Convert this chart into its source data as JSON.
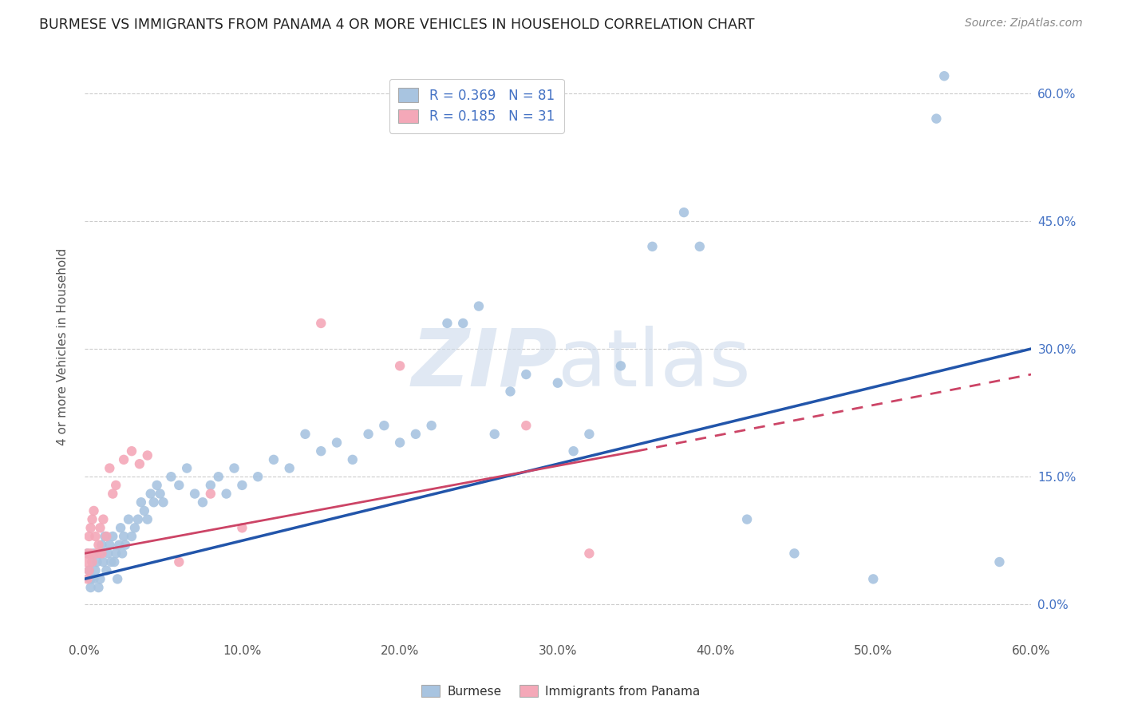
{
  "title": "BURMESE VS IMMIGRANTS FROM PANAMA 4 OR MORE VEHICLES IN HOUSEHOLD CORRELATION CHART",
  "source": "Source: ZipAtlas.com",
  "ylabel_label": "4 or more Vehicles in Household",
  "xlim": [
    0,
    0.6
  ],
  "ylim": [
    -0.04,
    0.645
  ],
  "ytick_vals": [
    0.0,
    0.15,
    0.3,
    0.45,
    0.6
  ],
  "xtick_vals": [
    0.0,
    0.1,
    0.2,
    0.3,
    0.4,
    0.5,
    0.6
  ],
  "burmese_R": 0.369,
  "burmese_N": 81,
  "panama_R": 0.185,
  "panama_N": 31,
  "burmese_color": "#a8c4e0",
  "burmese_line_color": "#2255aa",
  "panama_color": "#f4a8b8",
  "panama_line_color": "#cc4466",
  "watermark_color": "#ccdaeb",
  "legend_burmese": "Burmese",
  "legend_panama": "Immigrants from Panama",
  "background_color": "#ffffff",
  "grid_color": "#cccccc",
  "title_color": "#222222",
  "axis_tick_color": "#4472c4",
  "right_axis_color": "#4472c4",
  "burmese_x": [
    0.002,
    0.003,
    0.004,
    0.004,
    0.005,
    0.006,
    0.006,
    0.007,
    0.008,
    0.009,
    0.01,
    0.01,
    0.011,
    0.012,
    0.013,
    0.014,
    0.015,
    0.016,
    0.017,
    0.018,
    0.019,
    0.02,
    0.021,
    0.022,
    0.023,
    0.024,
    0.025,
    0.026,
    0.028,
    0.03,
    0.032,
    0.034,
    0.036,
    0.038,
    0.04,
    0.042,
    0.044,
    0.046,
    0.048,
    0.05,
    0.055,
    0.06,
    0.065,
    0.07,
    0.075,
    0.08,
    0.085,
    0.09,
    0.095,
    0.1,
    0.11,
    0.12,
    0.13,
    0.14,
    0.15,
    0.16,
    0.17,
    0.18,
    0.19,
    0.2,
    0.21,
    0.22,
    0.23,
    0.24,
    0.25,
    0.26,
    0.27,
    0.28,
    0.3,
    0.31,
    0.32,
    0.34,
    0.36,
    0.38,
    0.39,
    0.42,
    0.45,
    0.5,
    0.54,
    0.545,
    0.58
  ],
  "burmese_y": [
    0.06,
    0.04,
    0.02,
    0.03,
    0.05,
    0.06,
    0.03,
    0.04,
    0.05,
    0.02,
    0.06,
    0.03,
    0.07,
    0.05,
    0.08,
    0.04,
    0.06,
    0.07,
    0.05,
    0.08,
    0.05,
    0.06,
    0.03,
    0.07,
    0.09,
    0.06,
    0.08,
    0.07,
    0.1,
    0.08,
    0.09,
    0.1,
    0.12,
    0.11,
    0.1,
    0.13,
    0.12,
    0.14,
    0.13,
    0.12,
    0.15,
    0.14,
    0.16,
    0.13,
    0.12,
    0.14,
    0.15,
    0.13,
    0.16,
    0.14,
    0.15,
    0.17,
    0.16,
    0.2,
    0.18,
    0.19,
    0.17,
    0.2,
    0.21,
    0.19,
    0.2,
    0.21,
    0.33,
    0.33,
    0.35,
    0.2,
    0.25,
    0.27,
    0.26,
    0.18,
    0.2,
    0.28,
    0.42,
    0.46,
    0.42,
    0.1,
    0.06,
    0.03,
    0.57,
    0.62,
    0.05
  ],
  "panama_x": [
    0.001,
    0.002,
    0.002,
    0.003,
    0.003,
    0.004,
    0.004,
    0.005,
    0.005,
    0.006,
    0.007,
    0.008,
    0.009,
    0.01,
    0.011,
    0.012,
    0.014,
    0.016,
    0.018,
    0.02,
    0.025,
    0.03,
    0.035,
    0.04,
    0.06,
    0.08,
    0.1,
    0.15,
    0.2,
    0.28,
    0.32
  ],
  "panama_y": [
    0.05,
    0.06,
    0.03,
    0.08,
    0.04,
    0.09,
    0.06,
    0.1,
    0.05,
    0.11,
    0.08,
    0.06,
    0.07,
    0.09,
    0.06,
    0.1,
    0.08,
    0.16,
    0.13,
    0.14,
    0.17,
    0.18,
    0.165,
    0.175,
    0.05,
    0.13,
    0.09,
    0.33,
    0.28,
    0.21,
    0.06
  ]
}
